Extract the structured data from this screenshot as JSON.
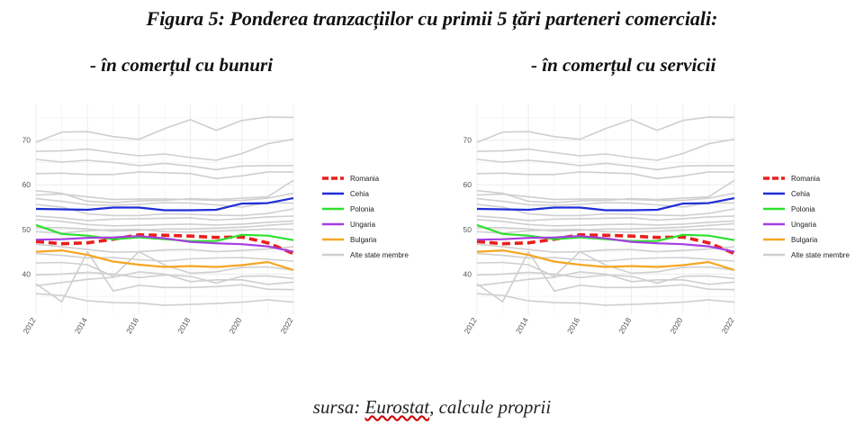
{
  "figure": {
    "title": "Figura 5: Ponderea tranzacțiilor cu primii 5 țări parteneri comerciali:",
    "subtitle_goods": "- în comerțul cu bunuri",
    "subtitle_services": "- în comerțul cu servicii",
    "source_prefix": "sursa: ",
    "source_name": "Eurostat",
    "source_suffix": ", calcule proprii"
  },
  "chart_data": [
    {
      "type": "line",
      "panel": "goods",
      "x": [
        2012,
        2013,
        2014,
        2015,
        2016,
        2017,
        2018,
        2019,
        2020,
        2021,
        2022
      ],
      "xticks": [
        "2012",
        "2014",
        "2016",
        "2018",
        "2020",
        "2022"
      ],
      "yticks": [
        "40",
        "50",
        "60",
        "70"
      ],
      "ylim": [
        31,
        78
      ],
      "xlim": [
        2012,
        2022
      ],
      "grid": true,
      "legend_position": "right",
      "series": [
        {
          "name": "Romania",
          "color": "#e8201c",
          "dashed": true,
          "highlight": true,
          "values": [
            47.3,
            46.8,
            47.0,
            47.8,
            48.8,
            48.7,
            48.5,
            48.2,
            48.3,
            47.0,
            44.6
          ]
        },
        {
          "name": "Cehia",
          "color": "#1f2fd6",
          "highlight": true,
          "values": [
            54.6,
            54.5,
            54.4,
            54.9,
            54.9,
            54.3,
            54.3,
            54.4,
            55.8,
            55.9,
            57.0
          ]
        },
        {
          "name": "Polonia",
          "color": "#2ee02e",
          "highlight": true,
          "values": [
            51.0,
            49.0,
            48.6,
            47.8,
            48.2,
            47.8,
            47.4,
            47.4,
            48.8,
            48.6,
            47.6
          ]
        },
        {
          "name": "Ungaria",
          "color": "#a43ee0",
          "highlight": true,
          "values": [
            47.7,
            47.8,
            48.1,
            48.2,
            48.5,
            48.0,
            47.2,
            46.9,
            46.7,
            46.2,
            45.0
          ]
        },
        {
          "name": "Bulgaria",
          "color": "#f5a623",
          "highlight": true,
          "values": [
            45.0,
            45.3,
            44.3,
            42.8,
            42.1,
            41.6,
            41.8,
            41.6,
            42.0,
            42.7,
            40.9
          ]
        },
        {
          "name": "Alte state membre",
          "color": "#cfcfcf",
          "legend": true,
          "values": [
            69.5,
            71.8,
            71.9,
            70.8,
            70.2,
            72.6,
            74.6,
            72.2,
            74.4,
            75.2,
            75.1
          ]
        },
        {
          "color": "#cfcfcf",
          "values": [
            67.5,
            67.6,
            68.0,
            67.2,
            66.5,
            66.9,
            66.1,
            65.5,
            67.0,
            69.2,
            70.2
          ]
        },
        {
          "color": "#cfcfcf",
          "values": [
            65.7,
            65.1,
            65.5,
            65.0,
            64.3,
            64.8,
            64.2,
            63.4,
            64.2,
            64.3,
            64.3
          ]
        },
        {
          "color": "#cfcfcf",
          "values": [
            62.5,
            62.6,
            62.3,
            62.3,
            62.9,
            62.7,
            62.5,
            61.4,
            62.0,
            62.9,
            62.9
          ]
        },
        {
          "color": "#cfcfcf",
          "values": [
            58.7,
            58.1,
            56.3,
            56.0,
            56.4,
            56.5,
            56.9,
            56.7,
            57.0,
            57.3,
            61.0
          ]
        },
        {
          "color": "#cfcfcf",
          "values": [
            57.7,
            57.9,
            57.3,
            56.7,
            56.8,
            56.8,
            56.7,
            56.5,
            56.5,
            57.0,
            58.1
          ]
        },
        {
          "color": "#cfcfcf",
          "values": [
            56.9,
            56.3,
            55.5,
            55.4,
            55.6,
            56.0,
            55.9,
            55.5,
            55.0,
            56.0,
            55.9
          ]
        },
        {
          "color": "#cfcfcf",
          "values": [
            55.6,
            55.0,
            53.5,
            53.1,
            53.1,
            53.5,
            53.4,
            53.2,
            53.1,
            53.6,
            54.6
          ]
        },
        {
          "color": "#cfcfcf",
          "values": [
            53.0,
            52.6,
            52.0,
            52.3,
            52.4,
            52.5,
            52.6,
            52.1,
            52.4,
            52.8,
            53.0
          ]
        },
        {
          "color": "#cfcfcf",
          "values": [
            52.2,
            51.8,
            51.1,
            50.8,
            50.9,
            51.1,
            51.2,
            51.0,
            51.2,
            51.6,
            51.9
          ]
        },
        {
          "color": "#cfcfcf",
          "values": [
            50.4,
            50.4,
            50.1,
            49.6,
            49.8,
            50.1,
            50.1,
            50.3,
            50.5,
            50.9,
            51.3
          ]
        },
        {
          "color": "#cfcfcf",
          "values": [
            49.5,
            49.2,
            49.7,
            49.9,
            50.0,
            49.5,
            49.4,
            49.6,
            49.8,
            50.1,
            50.0
          ]
        },
        {
          "color": "#cfcfcf",
          "values": [
            46.7,
            46.1,
            45.5,
            44.9,
            45.0,
            45.4,
            45.5,
            45.0,
            45.3,
            45.6,
            46.1
          ]
        },
        {
          "color": "#cfcfcf",
          "values": [
            44.6,
            44.2,
            43.6,
            43.7,
            43.2,
            42.9,
            43.4,
            43.6,
            43.7,
            43.3,
            42.9
          ]
        },
        {
          "color": "#cfcfcf",
          "values": [
            42.5,
            42.6,
            42.1,
            39.5,
            45.0,
            42.0,
            40.2,
            40.5,
            41.5,
            41.6,
            40.9
          ]
        },
        {
          "color": "#cfcfcf",
          "values": [
            39.8,
            40.0,
            40.4,
            40.0,
            39.2,
            39.8,
            39.5,
            38.0,
            39.5,
            39.6,
            39.0
          ]
        },
        {
          "color": "#cfcfcf",
          "values": [
            37.4,
            38.1,
            38.8,
            39.3,
            40.5,
            40.0,
            38.3,
            38.7,
            38.7,
            37.7,
            38.2
          ]
        },
        {
          "color": "#cfcfcf",
          "values": [
            35.6,
            35.2,
            34.0,
            33.6,
            33.5,
            33.0,
            33.2,
            33.4,
            33.7,
            34.2,
            33.7
          ]
        },
        {
          "color": "#cfcfcf",
          "values": [
            37.8,
            33.8,
            45.0,
            36.2,
            37.5,
            37.0,
            37.0,
            37.2,
            37.6,
            36.6,
            36.5
          ]
        }
      ]
    },
    {
      "type": "line",
      "panel": "services",
      "x": [
        2012,
        2013,
        2014,
        2015,
        2016,
        2017,
        2018,
        2019,
        2020,
        2021,
        2022
      ],
      "xticks": [
        "2012",
        "2014",
        "2016",
        "2018",
        "2020",
        "2022"
      ],
      "yticks": [
        "40",
        "50",
        "60",
        "70"
      ],
      "ylim": [
        31,
        78
      ],
      "xlim": [
        2012,
        2022
      ],
      "grid": true,
      "legend_position": "right",
      "series": [
        {
          "name": "Romania",
          "color": "#e8201c",
          "dashed": true,
          "highlight": true,
          "values": [
            47.3,
            46.8,
            47.0,
            47.8,
            48.8,
            48.7,
            48.5,
            48.2,
            48.3,
            47.0,
            44.6
          ]
        },
        {
          "name": "Cehia",
          "color": "#1f2fd6",
          "highlight": true,
          "values": [
            54.6,
            54.5,
            54.4,
            54.9,
            54.9,
            54.3,
            54.3,
            54.4,
            55.8,
            55.9,
            57.0
          ]
        },
        {
          "name": "Polonia",
          "color": "#2ee02e",
          "highlight": true,
          "values": [
            51.0,
            49.0,
            48.6,
            47.8,
            48.2,
            47.8,
            47.4,
            47.4,
            48.8,
            48.6,
            47.6
          ]
        },
        {
          "name": "Ungaria",
          "color": "#a43ee0",
          "highlight": true,
          "values": [
            47.7,
            47.8,
            48.1,
            48.2,
            48.5,
            48.0,
            47.2,
            46.9,
            46.7,
            46.2,
            45.0
          ]
        },
        {
          "name": "Bulgaria",
          "color": "#f5a623",
          "highlight": true,
          "values": [
            45.0,
            45.3,
            44.3,
            42.8,
            42.1,
            41.6,
            41.8,
            41.6,
            42.0,
            42.7,
            40.9
          ]
        },
        {
          "name": "Alte state membre",
          "color": "#cfcfcf",
          "legend": true,
          "values": [
            69.5,
            71.8,
            71.9,
            70.8,
            70.2,
            72.6,
            74.6,
            72.2,
            74.4,
            75.2,
            75.1
          ]
        },
        {
          "color": "#cfcfcf",
          "values": [
            67.5,
            67.6,
            68.0,
            67.2,
            66.5,
            66.9,
            66.1,
            65.5,
            67.0,
            69.2,
            70.2
          ]
        },
        {
          "color": "#cfcfcf",
          "values": [
            65.7,
            65.1,
            65.5,
            65.0,
            64.3,
            64.8,
            64.2,
            63.4,
            64.2,
            64.3,
            64.3
          ]
        },
        {
          "color": "#cfcfcf",
          "values": [
            62.5,
            62.6,
            62.3,
            62.3,
            62.9,
            62.7,
            62.5,
            61.4,
            62.0,
            62.9,
            62.9
          ]
        },
        {
          "color": "#cfcfcf",
          "values": [
            58.7,
            58.1,
            56.3,
            56.0,
            56.4,
            56.5,
            56.9,
            56.7,
            57.0,
            57.3,
            61.0
          ]
        },
        {
          "color": "#cfcfcf",
          "values": [
            57.7,
            57.9,
            57.3,
            56.7,
            56.8,
            56.8,
            56.7,
            56.5,
            56.5,
            57.0,
            58.1
          ]
        },
        {
          "color": "#cfcfcf",
          "values": [
            56.9,
            56.3,
            55.5,
            55.4,
            55.6,
            56.0,
            55.9,
            55.5,
            55.0,
            56.0,
            55.9
          ]
        },
        {
          "color": "#cfcfcf",
          "values": [
            55.6,
            55.0,
            53.5,
            53.1,
            53.1,
            53.5,
            53.4,
            53.2,
            53.1,
            53.6,
            54.6
          ]
        },
        {
          "color": "#cfcfcf",
          "values": [
            53.0,
            52.6,
            52.0,
            52.3,
            52.4,
            52.5,
            52.6,
            52.1,
            52.4,
            52.8,
            53.0
          ]
        },
        {
          "color": "#cfcfcf",
          "values": [
            52.2,
            51.8,
            51.1,
            50.8,
            50.9,
            51.1,
            51.2,
            51.0,
            51.2,
            51.6,
            51.9
          ]
        },
        {
          "color": "#cfcfcf",
          "values": [
            50.4,
            50.4,
            50.1,
            49.6,
            49.8,
            50.1,
            50.1,
            50.3,
            50.5,
            50.9,
            51.3
          ]
        },
        {
          "color": "#cfcfcf",
          "values": [
            49.5,
            49.2,
            49.7,
            49.9,
            50.0,
            49.5,
            49.4,
            49.6,
            49.8,
            50.1,
            50.0
          ]
        },
        {
          "color": "#cfcfcf",
          "values": [
            46.7,
            46.1,
            45.5,
            44.9,
            45.0,
            45.4,
            45.5,
            45.0,
            45.3,
            45.6,
            46.1
          ]
        },
        {
          "color": "#cfcfcf",
          "values": [
            44.6,
            44.2,
            43.6,
            43.7,
            43.2,
            42.9,
            43.4,
            43.6,
            43.7,
            43.3,
            42.9
          ]
        },
        {
          "color": "#cfcfcf",
          "values": [
            42.5,
            42.6,
            42.1,
            39.5,
            45.0,
            42.0,
            40.2,
            40.5,
            41.5,
            41.6,
            40.9
          ]
        },
        {
          "color": "#cfcfcf",
          "values": [
            39.8,
            40.0,
            40.4,
            40.0,
            39.2,
            39.8,
            39.5,
            38.0,
            39.5,
            39.6,
            39.0
          ]
        },
        {
          "color": "#cfcfcf",
          "values": [
            37.4,
            38.1,
            38.8,
            39.3,
            40.5,
            40.0,
            38.3,
            38.7,
            38.7,
            37.7,
            38.2
          ]
        },
        {
          "color": "#cfcfcf",
          "values": [
            35.6,
            35.2,
            34.0,
            33.6,
            33.5,
            33.0,
            33.2,
            33.4,
            33.7,
            34.2,
            33.7
          ]
        },
        {
          "color": "#cfcfcf",
          "values": [
            37.8,
            33.8,
            45.0,
            36.2,
            37.5,
            37.0,
            37.0,
            37.2,
            37.6,
            36.6,
            36.5
          ]
        }
      ]
    }
  ]
}
